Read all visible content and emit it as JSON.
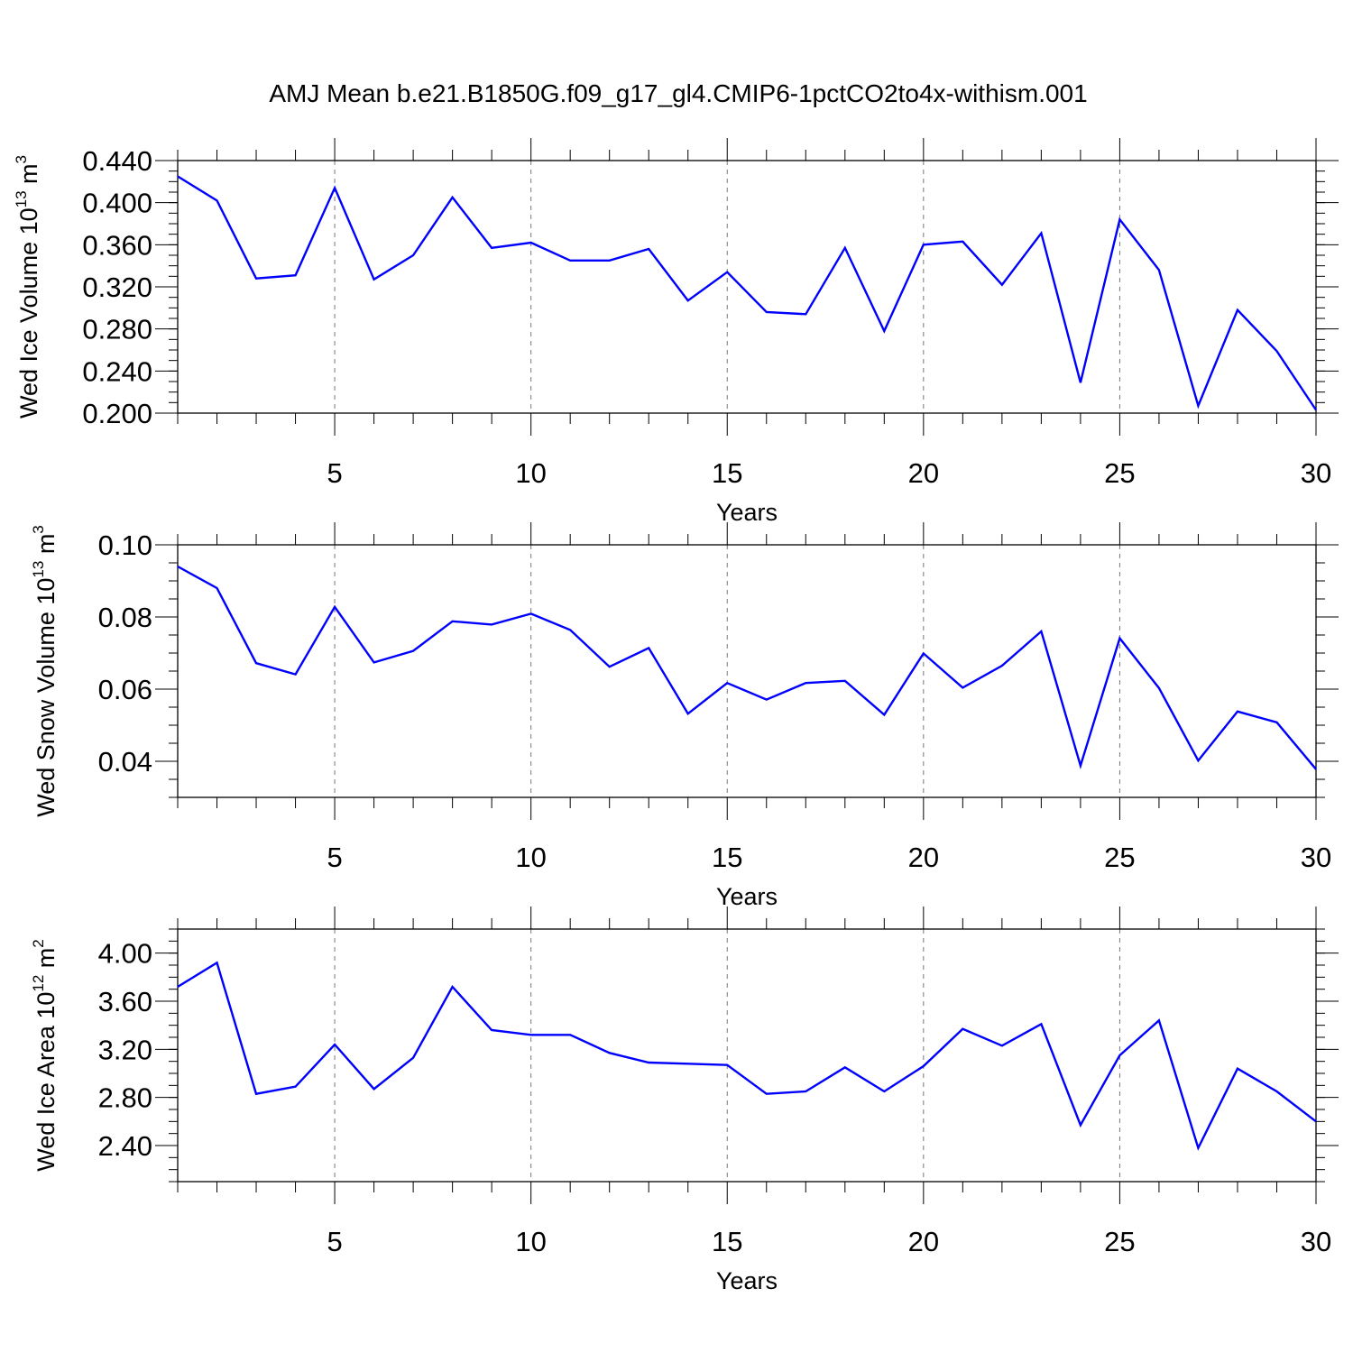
{
  "title": "AMJ Mean b.e21.B1850G.f09_g17_gl4.CMIP6-1pctCO2to4x-withism.001",
  "colors": {
    "line": "#0000ff",
    "axis": "#000000",
    "grid": "#777777"
  },
  "chart_data": [
    {
      "type": "line",
      "ylabel": {
        "main": "Wed Ice Volume 10",
        "exp": "13",
        "unit": " m",
        "unit_exp": "3"
      },
      "xlabel": "Years",
      "xlim": [
        1,
        30
      ],
      "ylim": [
        0.2,
        0.44
      ],
      "x_ticks": [
        5,
        10,
        15,
        20,
        25,
        30
      ],
      "x_tick_labels": [
        "5",
        "10",
        "15",
        "20",
        "25",
        "30"
      ],
      "y_ticks": [
        0.2,
        0.24,
        0.28,
        0.32,
        0.36,
        0.4,
        0.44
      ],
      "y_tick_labels": [
        "0.200",
        "0.240",
        "0.280",
        "0.320",
        "0.360",
        "0.400",
        "0.440"
      ],
      "y_minor_step": 0.01,
      "grid": "dashed vertical at major x ticks",
      "x": [
        1,
        2,
        3,
        4,
        5,
        6,
        7,
        8,
        9,
        10,
        11,
        12,
        13,
        14,
        15,
        16,
        17,
        18,
        19,
        20,
        21,
        22,
        23,
        24,
        25,
        26,
        27,
        28,
        29,
        30
      ],
      "values": [
        0.425,
        0.402,
        0.328,
        0.331,
        0.414,
        0.327,
        0.35,
        0.405,
        0.357,
        0.362,
        0.345,
        0.345,
        0.356,
        0.307,
        0.334,
        0.296,
        0.294,
        0.357,
        0.278,
        0.36,
        0.363,
        0.322,
        0.371,
        0.229,
        0.384,
        0.336,
        0.207,
        0.298,
        0.259,
        0.203
      ]
    },
    {
      "type": "line",
      "ylabel": {
        "main": "Wed Snow Volume 10",
        "exp": "13",
        "unit": " m",
        "unit_exp": "3"
      },
      "xlabel": "Years",
      "xlim": [
        1,
        30
      ],
      "ylim": [
        0.03,
        0.1
      ],
      "x_ticks": [
        5,
        10,
        15,
        20,
        25,
        30
      ],
      "x_tick_labels": [
        "5",
        "10",
        "15",
        "20",
        "25",
        "30"
      ],
      "y_ticks": [
        0.04,
        0.06,
        0.08,
        0.1
      ],
      "y_tick_labels": [
        "0.04",
        "0.06",
        "0.08",
        "0.10"
      ],
      "y_minor_step": 0.005,
      "grid": "dashed vertical at major x ticks",
      "x": [
        1,
        2,
        3,
        4,
        5,
        6,
        7,
        8,
        9,
        10,
        11,
        12,
        13,
        14,
        15,
        16,
        17,
        18,
        19,
        20,
        21,
        22,
        23,
        24,
        25,
        26,
        27,
        28,
        29,
        30
      ],
      "values": [
        0.094,
        0.088,
        0.0672,
        0.0641,
        0.0828,
        0.0674,
        0.0706,
        0.0788,
        0.0779,
        0.0809,
        0.0764,
        0.0662,
        0.0714,
        0.0532,
        0.0617,
        0.0571,
        0.0617,
        0.0623,
        0.0529,
        0.0699,
        0.0604,
        0.0665,
        0.076,
        0.0388,
        0.0741,
        0.0603,
        0.0402,
        0.0538,
        0.0508,
        0.0378
      ]
    },
    {
      "type": "line",
      "ylabel": {
        "main": "Wed Ice Area 10",
        "exp": "12",
        "unit": " m",
        "unit_exp": "2"
      },
      "xlabel": "Years",
      "xlim": [
        1,
        30
      ],
      "ylim": [
        2.1,
        4.2
      ],
      "x_ticks": [
        5,
        10,
        15,
        20,
        25,
        30
      ],
      "x_tick_labels": [
        "5",
        "10",
        "15",
        "20",
        "25",
        "30"
      ],
      "y_ticks": [
        2.4,
        2.8,
        3.2,
        3.6,
        4.0
      ],
      "y_tick_labels": [
        "2.40",
        "2.80",
        "3.20",
        "3.60",
        "4.00"
      ],
      "y_minor_step": 0.1,
      "grid": "dashed vertical at major x ticks",
      "x": [
        1,
        2,
        3,
        4,
        5,
        6,
        7,
        8,
        9,
        10,
        11,
        12,
        13,
        14,
        15,
        16,
        17,
        18,
        19,
        20,
        21,
        22,
        23,
        24,
        25,
        26,
        27,
        28,
        29,
        30
      ],
      "values": [
        3.72,
        3.92,
        2.83,
        2.89,
        3.24,
        2.87,
        3.13,
        3.72,
        3.36,
        3.32,
        3.32,
        3.17,
        3.09,
        3.08,
        3.07,
        2.83,
        2.85,
        3.05,
        2.85,
        3.06,
        3.37,
        3.23,
        3.41,
        2.57,
        3.15,
        3.44,
        2.38,
        3.04,
        2.85,
        2.6
      ]
    }
  ]
}
